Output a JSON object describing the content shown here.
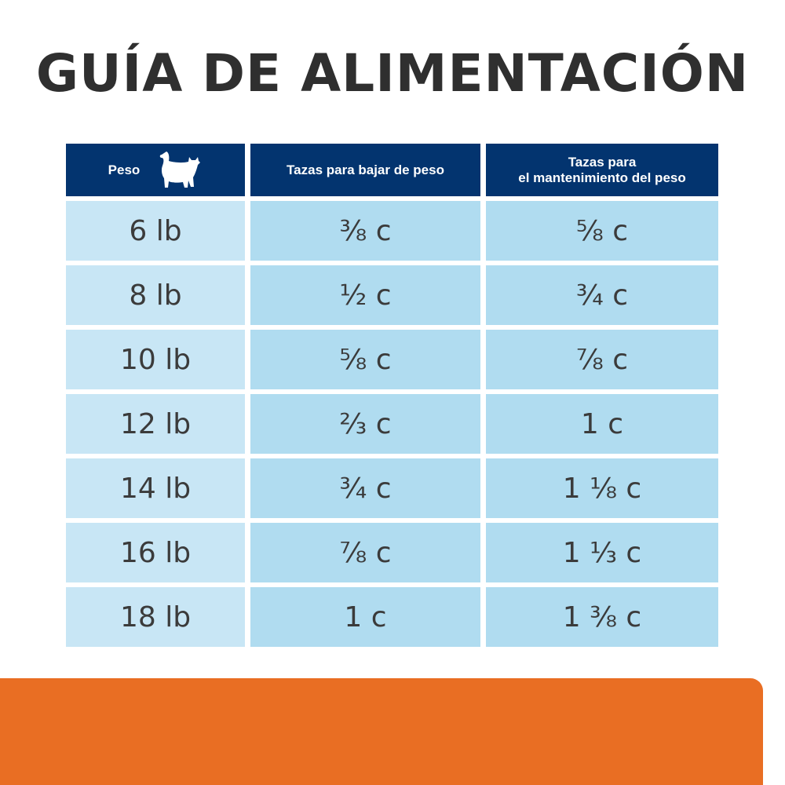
{
  "title": "GUÍA DE ALIMENTACIÓN",
  "table": {
    "headers": {
      "weight": "Peso",
      "weight_icon": "cat-icon",
      "loss": "Tazas para bajar de peso",
      "maintenance_line1": "Tazas para",
      "maintenance_line2": "el mantenimiento del peso"
    },
    "rows": [
      {
        "weight": "6 lb",
        "loss": "⅜ c",
        "maintenance": "⅝ c"
      },
      {
        "weight": "8 lb",
        "loss": "½ c",
        "maintenance": "¾ c"
      },
      {
        "weight": "10 lb",
        "loss": "⅝ c",
        "maintenance": "⅞ c"
      },
      {
        "weight": "12 lb",
        "loss": "⅔ c",
        "maintenance": "1 c"
      },
      {
        "weight": "14 lb",
        "loss": "¾ c",
        "maintenance": "1 ⅛ c"
      },
      {
        "weight": "16 lb",
        "loss": "⅞ c",
        "maintenance": "1 ⅓ c"
      },
      {
        "weight": "18 lb",
        "loss": "1 c",
        "maintenance": "1 ⅜ c"
      }
    ]
  },
  "colors": {
    "header": "#03346f",
    "weight_cell": "#c8e6f5",
    "cup_cell": "#b0dcf0",
    "footer_band": "#e96e23"
  }
}
